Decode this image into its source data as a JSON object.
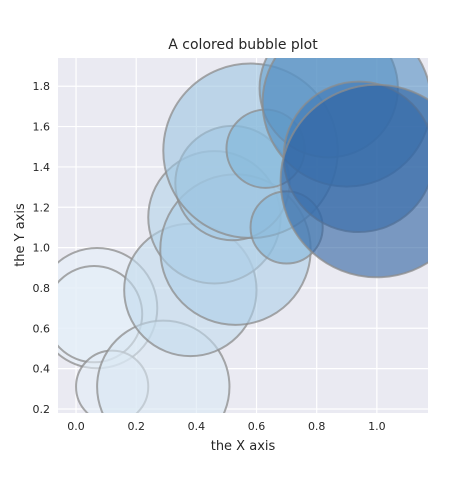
{
  "chart_data": {
    "type": "scatter",
    "title": "A colored bubble plot",
    "xlabel": "the X axis",
    "ylabel": "the Y axis",
    "xlim": [
      -0.06,
      1.17
    ],
    "ylim": [
      0.18,
      1.94
    ],
    "xticks": [
      0.0,
      0.2,
      0.4,
      0.6,
      0.8,
      1.0
    ],
    "xtick_labels": [
      "0.0",
      "0.2",
      "0.4",
      "0.6",
      "0.8",
      "1.0"
    ],
    "yticks": [
      0.2,
      0.4,
      0.6,
      0.8,
      1.0,
      1.2,
      1.4,
      1.6,
      1.8
    ],
    "ytick_labels": [
      "0.2",
      "0.4",
      "0.6",
      "0.8",
      "1.0",
      "1.2",
      "1.4",
      "1.6",
      "1.8"
    ],
    "grid": true,
    "colormap": "Blues",
    "alpha": 0.6,
    "points": [
      {
        "x": 0.07,
        "y": 0.7,
        "size": 0.2,
        "color_value": 0.05
      },
      {
        "x": 0.06,
        "y": 0.67,
        "size": 0.16,
        "color_value": 0.04
      },
      {
        "x": 0.12,
        "y": 0.31,
        "size": 0.12,
        "color_value": 0.06
      },
      {
        "x": 0.29,
        "y": 0.31,
        "size": 0.22,
        "color_value": 0.12
      },
      {
        "x": 0.38,
        "y": 0.79,
        "size": 0.22,
        "color_value": 0.28
      },
      {
        "x": 0.46,
        "y": 1.15,
        "size": 0.22,
        "color_value": 0.34
      },
      {
        "x": 0.53,
        "y": 0.99,
        "size": 0.25,
        "color_value": 0.36
      },
      {
        "x": 0.52,
        "y": 1.32,
        "size": 0.19,
        "color_value": 0.39
      },
      {
        "x": 0.58,
        "y": 1.48,
        "size": 0.29,
        "color_value": 0.42
      },
      {
        "x": 0.63,
        "y": 1.49,
        "size": 0.13,
        "color_value": 0.52
      },
      {
        "x": 0.7,
        "y": 1.1,
        "size": 0.12,
        "color_value": 0.5
      },
      {
        "x": 0.84,
        "y": 1.79,
        "size": 0.23,
        "color_value": 0.62
      },
      {
        "x": 0.9,
        "y": 1.72,
        "size": 0.28,
        "color_value": 0.7
      },
      {
        "x": 0.94,
        "y": 1.45,
        "size": 0.25,
        "color_value": 0.8
      },
      {
        "x": 1.0,
        "y": 1.33,
        "size": 0.32,
        "color_value": 0.9
      }
    ]
  }
}
